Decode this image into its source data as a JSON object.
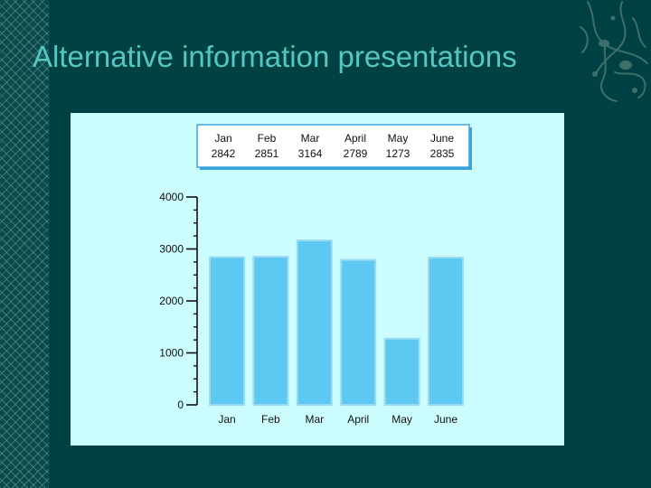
{
  "slide": {
    "title": "Alternative information presentations"
  },
  "colors": {
    "background": "#004244",
    "title": "#56c6c4",
    "panel": "#ccfdfe",
    "bar": "#5dc8f2",
    "bar_outline": "#9adbf4",
    "table_border": "#3aa3dc"
  },
  "icons": [
    "floral-ornament-icon"
  ],
  "chart_data": {
    "type": "bar",
    "categories": [
      "Jan",
      "Feb",
      "Mar",
      "April",
      "May",
      "June"
    ],
    "values": [
      2842,
      2851,
      3164,
      2789,
      1273,
      2835
    ],
    "ylim": [
      0,
      4000
    ],
    "yticks": [
      0,
      1000,
      2000,
      3000,
      4000
    ],
    "grid": false,
    "table": {
      "headers": [
        "Jan",
        "Feb",
        "Mar",
        "April",
        "May",
        "June"
      ],
      "values": [
        "2842",
        "2851",
        "3164",
        "2789",
        "1273",
        "2835"
      ]
    }
  }
}
